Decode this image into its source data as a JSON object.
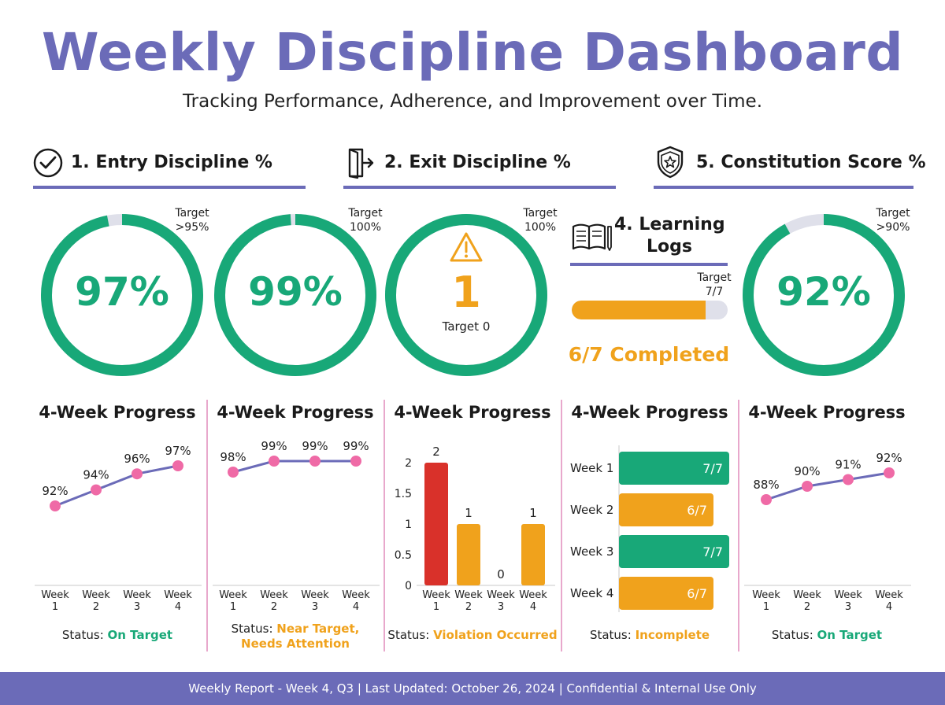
{
  "header": {
    "title": "Weekly Discipline Dashboard",
    "subtitle": "Tracking Performance, Adherence, and Improvement over Time."
  },
  "sections": {
    "entry": "1. Entry Discipline %",
    "exit": "2. Exit Discipline %",
    "constitution": "5. Constitution Score %",
    "learning_line1": "4. Learning",
    "learning_line2": "Logs"
  },
  "kpis": {
    "entry": {
      "value": "97%",
      "target_line1": "Target",
      "target_line2": ">95%",
      "fraction": 0.97
    },
    "exit": {
      "value": "99%",
      "target_line1": "Target",
      "target_line2": "100%",
      "fraction": 0.99
    },
    "violation": {
      "value": "1",
      "target_line1": "Target",
      "target_line2": "100%",
      "inner_target": "Target 0",
      "fraction": 1.0
    },
    "learning": {
      "target_line1": "Target",
      "target_line2": "7/7",
      "completed_text": "6/7 Completed",
      "fraction": 0.857
    },
    "constitution": {
      "value": "92%",
      "target_line1": "Target",
      "target_line2": ">90%",
      "fraction": 0.92
    }
  },
  "colors": {
    "accent": "#6b6bb8",
    "green": "#18a878",
    "orange": "#f0a21c",
    "red": "#d9312a",
    "pink": "#ef6aa6",
    "track": "#dfe0ea"
  },
  "progress_title": "4-Week Progress",
  "statuses": {
    "label": "Status:",
    "entry": "On Target",
    "exit_line1": "Near Target,",
    "exit_line2": "Needs Attention",
    "violation": "Violation Occurred",
    "learning": "Incomplete",
    "constitution": "On Target"
  },
  "chart_data": [
    {
      "type": "line",
      "title": "4-Week Progress",
      "categories": [
        "Week 1",
        "Week 2",
        "Week 3",
        "Week 4"
      ],
      "values": [
        92,
        94,
        96,
        97
      ],
      "labels": [
        "92%",
        "94%",
        "96%",
        "97%"
      ],
      "ylim": [
        80,
        100
      ]
    },
    {
      "type": "line",
      "title": "4-Week Progress",
      "categories": [
        "Week 1",
        "Week 2",
        "Week 3",
        "Week 4"
      ],
      "values": [
        98,
        99,
        99,
        99
      ],
      "labels": [
        "98%",
        "99%",
        "99%",
        "99%"
      ],
      "ylim": [
        80,
        100
      ]
    },
    {
      "type": "bar",
      "title": "4-Week Progress",
      "categories": [
        "Week 1",
        "Week 2",
        "Week 3",
        "Week 4"
      ],
      "values": [
        2,
        1,
        0,
        1
      ],
      "labels": [
        "2",
        "1",
        "0",
        "1"
      ],
      "yticks": [
        "0",
        "0.5",
        "1",
        "1.5",
        "2"
      ],
      "ylim": [
        0,
        2
      ]
    },
    {
      "type": "bar",
      "orientation": "horizontal",
      "title": "4-Week Progress",
      "categories": [
        "Week 1",
        "Week 2",
        "Week 3",
        "Week 4"
      ],
      "values": [
        7,
        6,
        7,
        6
      ],
      "labels": [
        "7/7",
        "6/7",
        "7/7",
        "6/7"
      ],
      "xlim": [
        0,
        7
      ]
    },
    {
      "type": "line",
      "title": "4-Week Progress",
      "categories": [
        "Week 1",
        "Week 2",
        "Week 3",
        "Week 4"
      ],
      "values": [
        88,
        90,
        91,
        92
      ],
      "labels": [
        "88%",
        "90%",
        "91%",
        "92%"
      ],
      "ylim": [
        70,
        100
      ]
    }
  ],
  "footer": {
    "text": "Weekly Report - Week 4, Q3 | Last Updated: October 26, 2024 | Confidential & Internal Use Only"
  }
}
